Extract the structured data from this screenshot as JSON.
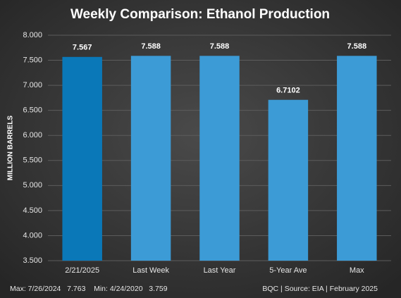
{
  "chart_data": {
    "type": "bar",
    "title": "Weekly Comparison: Ethanol Production",
    "y_label": "MILLION BARRELS",
    "categories": [
      "2/21/2025",
      "Last Week",
      "Last Year",
      "5-Year Ave",
      "Max"
    ],
    "values": [
      7.567,
      7.588,
      7.588,
      6.7102,
      7.588
    ],
    "colors": [
      "#0a78b8",
      "#3c9bd6",
      "#3c9bd6",
      "#3c9bd6",
      "#3c9bd6"
    ],
    "ylim": [
      3.5,
      8.0
    ],
    "yticks": [
      {
        "value": 3.5,
        "label": "3.500"
      },
      {
        "value": 4.0,
        "label": "4.000"
      },
      {
        "value": 4.5,
        "label": "4.500"
      },
      {
        "value": 5.0,
        "label": "5.000"
      },
      {
        "value": 5.5,
        "label": "5.500"
      },
      {
        "value": 6.0,
        "label": "6.000"
      },
      {
        "value": 6.5,
        "label": "6.500"
      },
      {
        "value": 7.0,
        "label": "7.000"
      },
      {
        "value": 7.5,
        "label": "7.500"
      },
      {
        "value": 8.0,
        "label": "8.000"
      }
    ],
    "grid": true,
    "footnote_left": "Max: 7/26/2024   7.763    Min: 4/24/2020   3.759",
    "footnote_right": "BQC | Source: EIA | February 2025"
  }
}
